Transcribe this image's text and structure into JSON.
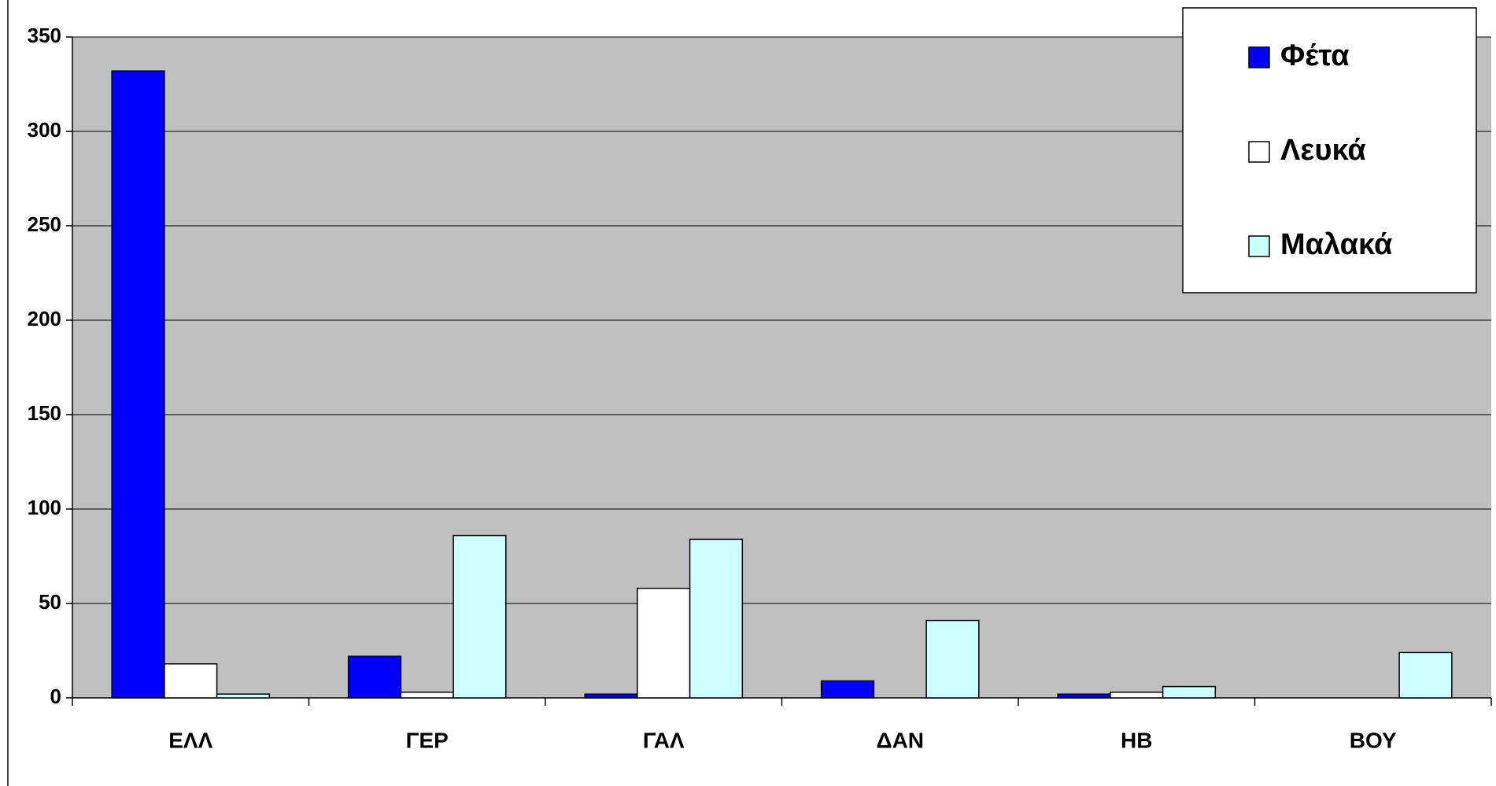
{
  "chart_data": {
    "type": "bar",
    "categories": [
      "ΕΛΛ",
      "ΓΕΡ",
      "ΓΑΛ",
      "ΔΑΝ",
      "ΗΒ",
      "ΒΟΥ"
    ],
    "series": [
      {
        "name": "Φέτα",
        "color": "#0000ff",
        "values": [
          332,
          22,
          2,
          9,
          2,
          null
        ]
      },
      {
        "name": "Λευκά",
        "color": "#ffffff",
        "values": [
          18,
          3,
          58,
          null,
          3,
          null
        ]
      },
      {
        "name": "Μαλακά",
        "color": "#ccffff",
        "values": [
          2,
          86,
          84,
          41,
          6,
          24
        ]
      }
    ],
    "ylim": [
      0,
      350
    ],
    "yticks": [
      0,
      50,
      100,
      150,
      200,
      250,
      300,
      350
    ],
    "grid": true,
    "legend": "top-right"
  }
}
